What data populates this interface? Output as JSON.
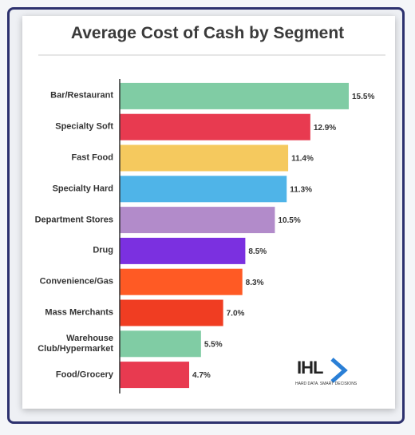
{
  "chart_data": {
    "type": "bar",
    "orientation": "horizontal",
    "title": "Average Cost of Cash by Segment",
    "categories": [
      "Bar/Restaurant",
      "Specialty Soft",
      "Fast Food",
      "Specialty Hard",
      "Department Stores",
      "Drug",
      "Convenience/Gas",
      "Mass Merchants",
      "Warehouse Club/Hypermarket",
      "Food/Grocery"
    ],
    "values": [
      15.5,
      12.9,
      11.4,
      11.3,
      10.5,
      8.5,
      8.3,
      7.0,
      5.5,
      4.7
    ],
    "value_labels": [
      "15.5%",
      "12.9%",
      "11.4%",
      "11.3%",
      "10.5%",
      "8.5%",
      "8.3%",
      "7.0%",
      "5.5%",
      "4.7%"
    ],
    "colors": [
      "#80cca4",
      "#e83a50",
      "#f5c95e",
      "#4fb4e8",
      "#b28bca",
      "#7b30e0",
      "#ff5a24",
      "#f03d22",
      "#80cca4",
      "#e83a50"
    ]
  },
  "logo": {
    "name": "IHL",
    "tagline": "HARD DATA. SMART DECISIONS"
  }
}
